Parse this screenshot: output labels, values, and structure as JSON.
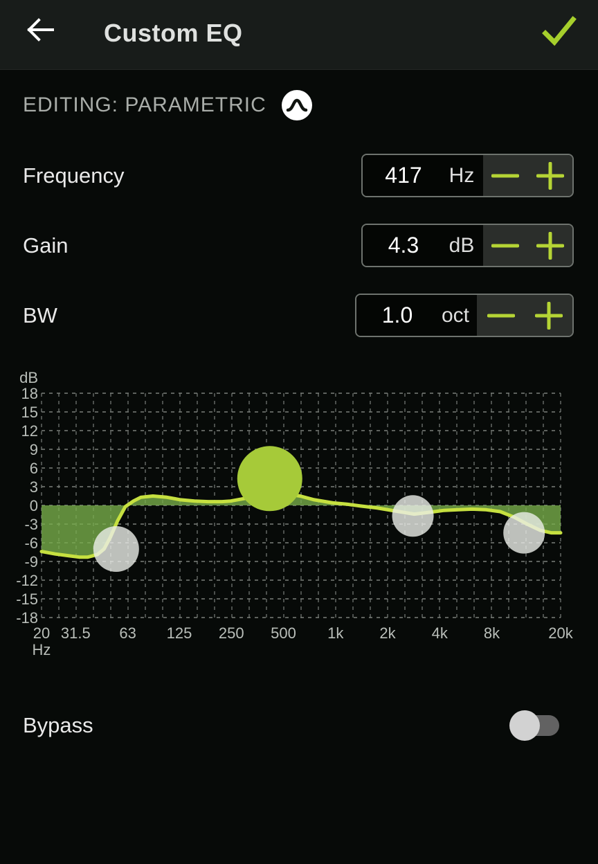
{
  "header": {
    "title": "Custom EQ",
    "back_icon": "arrow-left-icon",
    "confirm_icon": "checkmark-icon"
  },
  "editing": {
    "label": "EDITING: PARAMETRIC",
    "icon": "parametric-peak-icon"
  },
  "params": [
    {
      "label": "Frequency",
      "value": "417",
      "unit": "Hz",
      "decrement_icon": "minus-icon",
      "increment_icon": "plus-icon"
    },
    {
      "label": "Gain",
      "value": "4.3",
      "unit": "dB",
      "decrement_icon": "minus-icon",
      "increment_icon": "plus-icon"
    },
    {
      "label": "BW",
      "value": "1.0",
      "unit": "oct",
      "decrement_icon": "minus-icon",
      "increment_icon": "plus-icon"
    }
  ],
  "bypass": {
    "label": "Bypass",
    "state": "off"
  },
  "colors": {
    "accent": "#aed435",
    "curve": "#c6e040",
    "fill": "rgba(122,176,76,0.78)",
    "active_handle": "#a6ca39",
    "inactive_handle": "rgba(235,237,233,0.80)",
    "grid": "#7b807b",
    "axis_text": "#b9beb9",
    "header_bg": "#181c1a",
    "body_bg": "#070a08"
  },
  "chart_data": {
    "type": "line",
    "title": "EQ frequency response curve",
    "xlabel": "Hz",
    "ylabel": "dB",
    "x_scale": "log",
    "x_range": [
      20,
      20000
    ],
    "y_range": [
      -18,
      18
    ],
    "grid": "dashed; horizontal every 3 dB, vertical every 1/3 octave",
    "legend": "none",
    "y_ticks": [
      18,
      15,
      12,
      9,
      6,
      3,
      0,
      -3,
      -6,
      -9,
      -12,
      -15,
      -18
    ],
    "x_ticks": [
      {
        "f": 20,
        "label": "20"
      },
      {
        "f": 31.5,
        "label": "31.5"
      },
      {
        "f": 63,
        "label": "63"
      },
      {
        "f": 125,
        "label": "125"
      },
      {
        "f": 250,
        "label": "250"
      },
      {
        "f": 500,
        "label": "500"
      },
      {
        "f": 1000,
        "label": "1k"
      },
      {
        "f": 2000,
        "label": "2k"
      },
      {
        "f": 4000,
        "label": "4k"
      },
      {
        "f": 8000,
        "label": "8k"
      },
      {
        "f": 20000,
        "label": "20k"
      }
    ],
    "fill_baseline_db": 0,
    "curve": [
      [
        20,
        -7.4
      ],
      [
        24,
        -7.8
      ],
      [
        29,
        -8.1
      ],
      [
        33,
        -8.3
      ],
      [
        37,
        -8.3
      ],
      [
        42,
        -7.9
      ],
      [
        46,
        -7.0
      ],
      [
        50,
        -5.1
      ],
      [
        55,
        -2.5
      ],
      [
        61,
        -0.2
      ],
      [
        68,
        0.7
      ],
      [
        75,
        1.3
      ],
      [
        88,
        1.5
      ],
      [
        106,
        1.3
      ],
      [
        127,
        0.9
      ],
      [
        153,
        0.7
      ],
      [
        184,
        0.6
      ],
      [
        221,
        0.6
      ],
      [
        248,
        0.7
      ],
      [
        298,
        1.1
      ],
      [
        382,
        1.7
      ],
      [
        500,
        1.9
      ],
      [
        625,
        1.5
      ],
      [
        753,
        0.9
      ],
      [
        965,
        0.4
      ],
      [
        1160,
        0.2
      ],
      [
        1395,
        -0.1
      ],
      [
        1730,
        -0.4
      ],
      [
        2220,
        -0.9
      ],
      [
        2850,
        -1.4
      ],
      [
        3515,
        -1.1
      ],
      [
        4240,
        -0.8
      ],
      [
        5110,
        -0.7
      ],
      [
        6160,
        -0.6
      ],
      [
        7430,
        -0.7
      ],
      [
        8950,
        -1.0
      ],
      [
        10790,
        -1.9
      ],
      [
        13010,
        -3.1
      ],
      [
        15240,
        -4.0
      ],
      [
        17620,
        -4.4
      ],
      [
        20000,
        -4.4
      ]
    ],
    "handles": [
      {
        "freq": 54,
        "db": -7.0,
        "radius": 33,
        "active": false
      },
      {
        "freq": 417,
        "db": 4.3,
        "radius": 47,
        "active": true
      },
      {
        "freq": 2800,
        "db": -1.7,
        "radius": 30,
        "active": false
      },
      {
        "freq": 12300,
        "db": -4.4,
        "radius": 30,
        "active": false
      }
    ]
  }
}
